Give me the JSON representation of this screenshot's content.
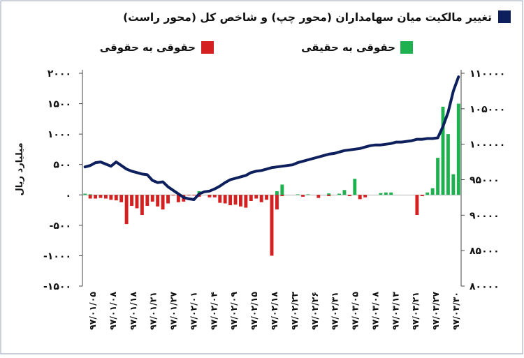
{
  "chart_data": {
    "type": "bar+line",
    "legend": {
      "line_label": "تغییر مالکیت میان سهامداران (محور چپ) و شاخص کل (محور راست)",
      "line_color": "#0d1f5c",
      "neg_label": "حقوقی به حقوقی",
      "neg_color": "#d42020",
      "pos_label": "حقوقی به حقیقی",
      "pos_color": "#1fb14f",
      "placement": "top"
    },
    "ylabel_left": "میلیارد ریال",
    "left_axis": {
      "ylim": [
        -1500,
        2000
      ],
      "ticks": [
        2000,
        1500,
        1000,
        500,
        0,
        -500,
        -1000,
        -1500
      ],
      "tick_labels": [
        "۲۰۰۰",
        "۱۵۰۰",
        "۱۰۰۰",
        "۵۰۰",
        "۰",
        "-۵۰۰",
        "-۱۰۰۰",
        "-۱۵۰۰"
      ]
    },
    "right_axis": {
      "ylim": [
        80000,
        110000
      ],
      "ticks": [
        110000,
        105000,
        100000,
        95000,
        90000,
        85000,
        80000
      ],
      "tick_labels": [
        "۱۱۰۰۰۰",
        "۱۰۵۰۰۰",
        "۱۰۰۰۰۰",
        "۹۵۰۰۰",
        "۹۰۰۰۰",
        "۸۵۰۰۰",
        "۸۰۰۰۰"
      ]
    },
    "x_tick_labels": [
      "۹۷/۰۱/۰۵",
      "۹۷/۰۱/۰۸",
      "۹۷/۰۱/۱۸",
      "۹۷/۰۱/۲۱",
      "۹۷/۰۱/۲۷",
      "۹۷/۰۲/۰۱",
      "۹۷/۰۲/۰۴",
      "۹۷/۰۲/۰۹",
      "۹۷/۰۲/۱۵",
      "۹۷/۰۲/۱۸",
      "۹۷/۰۲/۲۳",
      "۹۷/۰۲/۲۶",
      "۹۷/۰۲/۳۱",
      "۹۷/۰۳/۰۵",
      "۹۷/۰۳/۰۸",
      "۹۷/۰۳/۱۳",
      "۹۷/۰۳/۲۱",
      "۹۷/۰۳/۲۷",
      "۹۷/۰۳/۳۰"
    ],
    "series": [
      {
        "name": "حقوقی به حقیقی",
        "kind": "bar",
        "values": [
          20,
          10,
          0,
          0,
          0,
          0,
          0,
          0,
          0,
          0,
          0,
          0,
          0,
          0,
          0,
          0,
          0,
          0,
          0,
          0,
          0,
          0,
          60,
          0,
          0,
          0,
          0,
          0,
          0,
          0,
          0,
          0,
          0,
          0,
          0,
          0,
          0,
          60,
          170,
          0,
          0,
          10,
          0,
          10,
          0,
          0,
          0,
          25,
          0,
          20,
          80,
          0,
          265,
          0,
          0,
          0,
          0,
          30,
          40,
          40,
          0,
          0,
          0,
          0,
          0,
          0,
          40,
          110,
          610,
          1450,
          1000,
          340,
          1500
        ]
      },
      {
        "name": "حقوقی به حقوقی",
        "kind": "bar",
        "values": [
          0,
          -60,
          -60,
          -50,
          -60,
          -80,
          -90,
          -120,
          -480,
          -180,
          -220,
          -330,
          -180,
          -110,
          -190,
          -240,
          -140,
          -10,
          -120,
          -110,
          -10,
          -10,
          -30,
          0,
          -40,
          -40,
          -130,
          -140,
          -170,
          -160,
          -190,
          -210,
          -100,
          -60,
          -120,
          -80,
          -1000,
          -240,
          -20,
          0,
          0,
          0,
          -30,
          0,
          0,
          -50,
          0,
          -20,
          0,
          0,
          0,
          -20,
          0,
          -70,
          -40,
          0,
          0,
          0,
          0,
          0,
          0,
          0,
          0,
          0,
          -330,
          -20,
          0,
          0,
          0,
          0,
          0,
          0,
          0
        ]
      },
      {
        "name": "شاخص کل",
        "kind": "line",
        "axis": "right",
        "values": [
          96800,
          97000,
          97400,
          97500,
          97200,
          96900,
          97500,
          97000,
          96500,
          96200,
          96000,
          95800,
          95700,
          94900,
          94600,
          94700,
          94000,
          93500,
          93000,
          92500,
          92300,
          92200,
          93000,
          93300,
          93400,
          93700,
          94100,
          94600,
          95000,
          95200,
          95400,
          95600,
          96000,
          96200,
          96300,
          96500,
          96700,
          96800,
          96900,
          97000,
          97100,
          97400,
          97600,
          97800,
          98000,
          98200,
          98400,
          98600,
          98700,
          98900,
          99100,
          99200,
          99300,
          99400,
          99600,
          99800,
          99900,
          99900,
          100000,
          100100,
          100300,
          100300,
          100400,
          100500,
          100700,
          100700,
          100800,
          100800,
          100900,
          102500,
          104500,
          107500,
          109500
        ]
      }
    ]
  }
}
